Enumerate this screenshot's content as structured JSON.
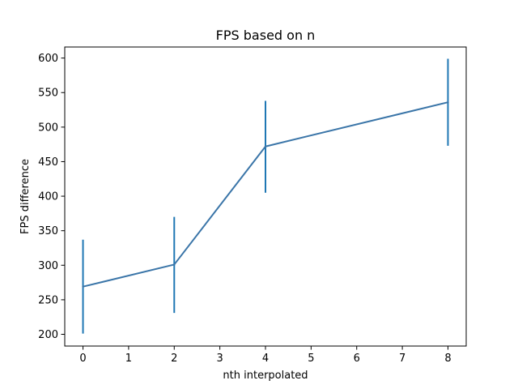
{
  "chart_data": {
    "type": "line",
    "title": "FPS based on n",
    "xlabel": "nth interpolated",
    "ylabel": "FPS difference",
    "xlim": [
      -0.4,
      8.4
    ],
    "ylim": [
      183,
      616
    ],
    "xticks": [
      0,
      1,
      2,
      3,
      4,
      5,
      6,
      7,
      8
    ],
    "yticks": [
      200,
      250,
      300,
      350,
      400,
      450,
      500,
      550,
      600
    ],
    "grid": false,
    "legend": "none",
    "series_color": "#3a75a8",
    "errorbar_color": "#1f77b4",
    "series": [
      {
        "x": [
          0,
          2,
          4,
          8
        ],
        "y": [
          269,
          301,
          472,
          536
        ],
        "yerr_low": [
          201,
          231,
          405,
          473
        ],
        "yerr_high": [
          337,
          370,
          538,
          599
        ]
      }
    ]
  }
}
